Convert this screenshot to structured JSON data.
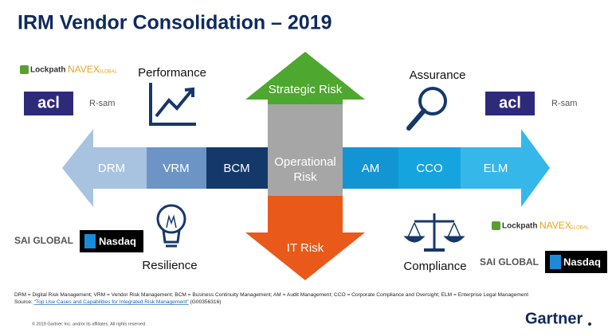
{
  "header": {
    "title": "IRM Vendor Consolidation – 2019"
  },
  "themes": {
    "performance": "Performance",
    "assurance": "Assurance",
    "resilience": "Resilience",
    "compliance": "Compliance"
  },
  "horizontal_arrow": {
    "segments": [
      "DRM",
      "VRM",
      "BCM",
      "AM",
      "CCO",
      "ELM"
    ]
  },
  "vertical_arrow": {
    "top": "Strategic Risk",
    "center": [
      "Operational",
      "Risk"
    ],
    "bottom": "IT Risk"
  },
  "logos": {
    "top_left": [
      "Lockpath",
      "NAVEX",
      "GLOBAL",
      "acl",
      "R-sam"
    ],
    "top_right": [
      "acl",
      "R-sam"
    ],
    "bottom_left": [
      "SAI GLOBAL",
      "Nasdaq"
    ],
    "bottom_right": [
      "Lockpath",
      "NAVEX",
      "GLOBAL",
      "SAI GLOBAL",
      "Nasdaq"
    ]
  },
  "footer": {
    "definitions": "DRM = Digital Risk Management; VRM = Vendor Risk Management; BCM = Business Continuity Management; AM = Audit Management; CCO = Corporate Compliance and Oversight; ELM = Enterprise Legal Management",
    "source_prefix": "Source:",
    "source_link": "\"Top Use Cases and Capabilities for Integrated Risk Management\"",
    "source_id": "(G00356316)",
    "copyright": "© 2019 Gartner, Inc. and/or its affiliates. All rights reserved.",
    "brand": "Gartner"
  }
}
